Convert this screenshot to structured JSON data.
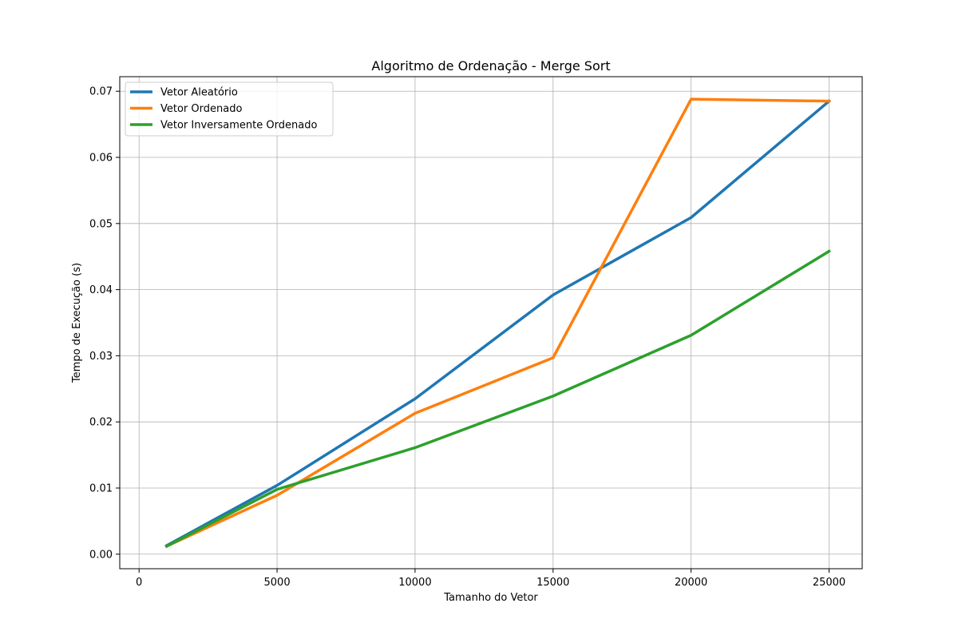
{
  "chart_data": {
    "type": "line",
    "title": "Algoritmo de Ordenação - Merge Sort",
    "xlabel": "Tamanho do Vetor",
    "ylabel": "Tempo de Execução (s)",
    "x": [
      1000,
      5000,
      10000,
      15000,
      20000,
      25000
    ],
    "xlim": [
      -700,
      26200
    ],
    "ylim": [
      -0.0022,
      0.0722
    ],
    "xticks": [
      0,
      5000,
      10000,
      15000,
      20000,
      25000
    ],
    "yticks": [
      0.0,
      0.01,
      0.02,
      0.03,
      0.04,
      0.05,
      0.06,
      0.07
    ],
    "xtick_labels": [
      "0",
      "5000",
      "10000",
      "15000",
      "20000",
      "25000"
    ],
    "ytick_labels": [
      "0.00",
      "0.01",
      "0.02",
      "0.03",
      "0.04",
      "0.05",
      "0.06",
      "0.07"
    ],
    "grid": true,
    "legend_position": "top-left",
    "series": [
      {
        "name": "Vetor Aleatório",
        "color": "#1f77b4",
        "values": [
          0.0013,
          0.0104,
          0.0235,
          0.0392,
          0.0509,
          0.0685
        ]
      },
      {
        "name": "Vetor Ordenado",
        "color": "#ff7f0e",
        "values": [
          0.0012,
          0.0089,
          0.0213,
          0.0297,
          0.0688,
          0.0685
        ]
      },
      {
        "name": "Vetor Inversamente Ordenado",
        "color": "#2ca02c",
        "values": [
          0.0012,
          0.0098,
          0.0161,
          0.0239,
          0.0331,
          0.0458
        ]
      }
    ]
  }
}
